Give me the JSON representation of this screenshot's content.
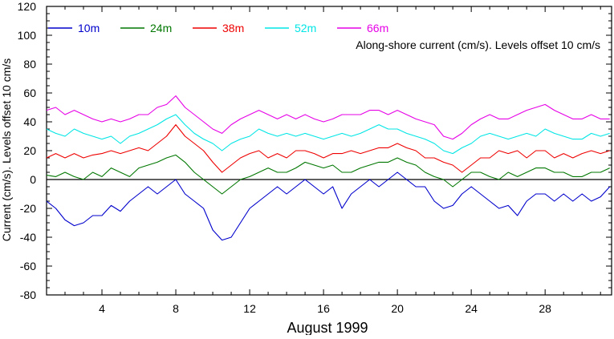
{
  "chart_data": {
    "type": "line",
    "xlabel": "August 1999",
    "ylabel": "Current (cm/s). Levels offset 10 cm/s",
    "annotation": "Along-shore current (cm/s). Levels offset 10 cm/s",
    "xlim": [
      1,
      31.6
    ],
    "ylim": [
      -80,
      120
    ],
    "x_ticks": [
      4,
      8,
      12,
      16,
      20,
      24,
      28
    ],
    "y_ticks": [
      -80,
      -60,
      -40,
      -20,
      0,
      20,
      40,
      60,
      80,
      100,
      120
    ],
    "zero_line": 0,
    "series": [
      {
        "name": "10m",
        "color": "#0000cc",
        "offset": 0,
        "x": [
          1,
          1.5,
          2,
          2.5,
          3,
          3.5,
          4,
          4.5,
          5,
          5.5,
          6,
          6.5,
          7,
          7.5,
          8,
          8.5,
          9,
          9.5,
          10,
          10.5,
          11,
          11.5,
          12,
          12.5,
          13,
          13.5,
          14,
          14.5,
          15,
          15.5,
          16,
          16.5,
          17,
          17.5,
          18,
          18.5,
          19,
          19.5,
          20,
          20.5,
          21,
          21.5,
          22,
          22.5,
          23,
          23.5,
          24,
          24.5,
          25,
          25.5,
          26,
          26.5,
          27,
          27.5,
          28,
          28.5,
          29,
          29.5,
          30,
          30.5,
          31,
          31.5
        ],
        "values": [
          -15,
          -20,
          -28,
          -32,
          -30,
          -25,
          -25,
          -18,
          -22,
          -15,
          -10,
          -5,
          -10,
          -5,
          0,
          -10,
          -15,
          -20,
          -35,
          -42,
          -40,
          -30,
          -20,
          -15,
          -10,
          -5,
          -10,
          -5,
          0,
          -5,
          -10,
          -5,
          -20,
          -10,
          -5,
          0,
          -5,
          0,
          5,
          0,
          -5,
          -5,
          -15,
          -20,
          -18,
          -10,
          -5,
          -10,
          -15,
          -20,
          -18,
          -25,
          -15,
          -10,
          -10,
          -15,
          -10,
          -15,
          -10,
          -15,
          -12,
          -5
        ]
      },
      {
        "name": "24m",
        "color": "#007700",
        "offset": 10,
        "x": [
          1,
          1.5,
          2,
          2.5,
          3,
          3.5,
          4,
          4.5,
          5,
          5.5,
          6,
          6.5,
          7,
          7.5,
          8,
          8.5,
          9,
          9.5,
          10,
          10.5,
          11,
          11.5,
          12,
          12.5,
          13,
          13.5,
          14,
          14.5,
          15,
          15.5,
          16,
          16.5,
          17,
          17.5,
          18,
          18.5,
          19,
          19.5,
          20,
          20.5,
          21,
          21.5,
          22,
          22.5,
          23,
          23.5,
          24,
          24.5,
          25,
          25.5,
          26,
          26.5,
          27,
          27.5,
          28,
          28.5,
          29,
          29.5,
          30,
          30.5,
          31,
          31.5
        ],
        "values": [
          -7,
          -8,
          -5,
          -8,
          -10,
          -5,
          -8,
          -2,
          -5,
          -8,
          -2,
          0,
          2,
          5,
          7,
          2,
          -5,
          -10,
          -15,
          -20,
          -15,
          -10,
          -8,
          -5,
          -2,
          -5,
          -5,
          -2,
          2,
          0,
          -2,
          0,
          -5,
          -5,
          -2,
          0,
          2,
          2,
          5,
          2,
          0,
          -5,
          -8,
          -10,
          -15,
          -10,
          -5,
          -5,
          -8,
          -10,
          -5,
          -8,
          -5,
          -2,
          -2,
          -5,
          -5,
          -8,
          -8,
          -5,
          -5,
          -2
        ]
      },
      {
        "name": "38m",
        "color": "#ee0000",
        "offset": 20,
        "x": [
          1,
          1.5,
          2,
          2.5,
          3,
          3.5,
          4,
          4.5,
          5,
          5.5,
          6,
          6.5,
          7,
          7.5,
          8,
          8.5,
          9,
          9.5,
          10,
          10.5,
          11,
          11.5,
          12,
          12.5,
          13,
          13.5,
          14,
          14.5,
          15,
          15.5,
          16,
          16.5,
          17,
          17.5,
          18,
          18.5,
          19,
          19.5,
          20,
          20.5,
          21,
          21.5,
          22,
          22.5,
          23,
          23.5,
          24,
          24.5,
          25,
          25.5,
          26,
          26.5,
          27,
          27.5,
          28,
          28.5,
          29,
          29.5,
          30,
          30.5,
          31,
          31.5
        ],
        "values": [
          -5,
          -2,
          -5,
          -2,
          -5,
          -3,
          -2,
          0,
          -2,
          0,
          2,
          0,
          5,
          10,
          18,
          10,
          5,
          0,
          -8,
          -15,
          -10,
          -5,
          -2,
          0,
          -5,
          -2,
          -5,
          0,
          0,
          -2,
          -5,
          -2,
          -2,
          0,
          -2,
          0,
          2,
          2,
          5,
          2,
          0,
          -5,
          -5,
          -8,
          -10,
          -15,
          -10,
          -5,
          -5,
          0,
          -2,
          0,
          -5,
          0,
          0,
          -5,
          -2,
          -5,
          -2,
          0,
          -2,
          0
        ]
      },
      {
        "name": "52m",
        "color": "#00e5e5",
        "offset": 30,
        "x": [
          1,
          1.5,
          2,
          2.5,
          3,
          3.5,
          4,
          4.5,
          5,
          5.5,
          6,
          6.5,
          7,
          7.5,
          8,
          8.5,
          9,
          9.5,
          10,
          10.5,
          11,
          11.5,
          12,
          12.5,
          13,
          13.5,
          14,
          14.5,
          15,
          15.5,
          16,
          16.5,
          17,
          17.5,
          18,
          18.5,
          19,
          19.5,
          20,
          20.5,
          21,
          21.5,
          22,
          22.5,
          23,
          23.5,
          24,
          24.5,
          25,
          25.5,
          26,
          26.5,
          27,
          27.5,
          28,
          28.5,
          29,
          29.5,
          30,
          30.5,
          31,
          31.5
        ],
        "values": [
          5,
          2,
          0,
          5,
          2,
          0,
          -2,
          0,
          -5,
          0,
          2,
          5,
          8,
          12,
          15,
          8,
          2,
          -2,
          -5,
          -10,
          -5,
          -2,
          0,
          5,
          2,
          0,
          2,
          0,
          2,
          0,
          -2,
          0,
          2,
          0,
          2,
          5,
          8,
          5,
          5,
          2,
          0,
          -2,
          -5,
          -10,
          -12,
          -8,
          -5,
          0,
          2,
          0,
          -2,
          0,
          2,
          0,
          5,
          2,
          0,
          -2,
          -2,
          2,
          0,
          2
        ]
      },
      {
        "name": "66m",
        "color": "#e600e6",
        "offset": 40,
        "x": [
          1,
          1.5,
          2,
          2.5,
          3,
          3.5,
          4,
          4.5,
          5,
          5.5,
          6,
          6.5,
          7,
          7.5,
          8,
          8.5,
          9,
          9.5,
          10,
          10.5,
          11,
          11.5,
          12,
          12.5,
          13,
          13.5,
          14,
          14.5,
          15,
          15.5,
          16,
          16.5,
          17,
          17.5,
          18,
          18.5,
          19,
          19.5,
          20,
          20.5,
          21,
          21.5,
          22,
          22.5,
          23,
          23.5,
          24,
          24.5,
          25,
          25.5,
          26,
          26.5,
          27,
          27.5,
          28,
          28.5,
          29,
          29.5,
          30,
          30.5,
          31,
          31.5
        ],
        "values": [
          8,
          10,
          5,
          8,
          5,
          2,
          0,
          2,
          0,
          2,
          5,
          5,
          10,
          12,
          18,
          10,
          5,
          0,
          -5,
          -8,
          -2,
          2,
          5,
          8,
          5,
          2,
          5,
          2,
          5,
          2,
          0,
          2,
          5,
          5,
          5,
          8,
          8,
          5,
          8,
          5,
          2,
          0,
          -2,
          -10,
          -12,
          -8,
          -2,
          2,
          5,
          2,
          2,
          5,
          8,
          10,
          12,
          8,
          5,
          2,
          2,
          5,
          2,
          2
        ]
      }
    ]
  }
}
